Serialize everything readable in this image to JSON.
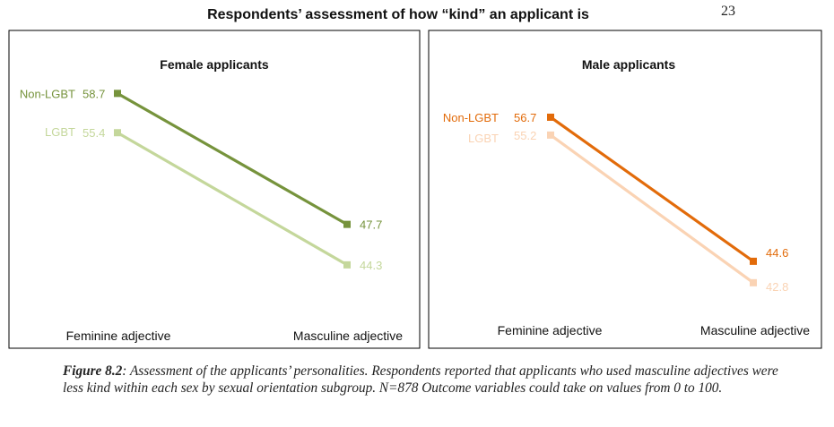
{
  "page_number": "23",
  "title": "Respondents’ assessment of how “kind” an applicant is",
  "caption": {
    "label": "Figure 8.2",
    "text": ": Assessment of the applicants’ personalities. Respondents reported that applicants who used masculine adjectives were less kind within each sex by sexual orientation subgroup. N=878 Outcome variables could take on values from 0 to 100."
  },
  "colors": {
    "female_non_lgbt": "#76933C",
    "female_lgbt": "#C4D79B",
    "male_non_lgbt": "#E26B0A",
    "male_lgbt": "#FAD3B4"
  },
  "chart_data": [
    {
      "type": "line",
      "title": "Female applicants",
      "categories": [
        "Feminine adjective",
        "Masculine adjective"
      ],
      "series": [
        {
          "name": "Non-LGBT",
          "values": [
            58.7,
            47.7
          ],
          "labels": [
            "58.7",
            "47.7"
          ],
          "color": "#76933C"
        },
        {
          "name": "LGBT",
          "values": [
            55.4,
            44.3
          ],
          "labels": [
            "55.4",
            "44.3"
          ],
          "color": "#C4D79B"
        }
      ],
      "ylim": [
        0,
        100
      ],
      "grid": false,
      "legend": "series names at line start"
    },
    {
      "type": "line",
      "title": "Male applicants",
      "categories": [
        "Feminine adjective",
        "Masculine adjective"
      ],
      "series": [
        {
          "name": "Non-LGBT",
          "values": [
            56.7,
            44.6
          ],
          "labels": [
            "56.7",
            "44.6"
          ],
          "color": "#E26B0A"
        },
        {
          "name": "LGBT",
          "values": [
            55.2,
            42.8
          ],
          "labels": [
            "55.2",
            "42.8"
          ],
          "color": "#FAD3B4"
        }
      ],
      "ylim": [
        0,
        100
      ],
      "grid": false,
      "legend": "series names at line start"
    }
  ]
}
